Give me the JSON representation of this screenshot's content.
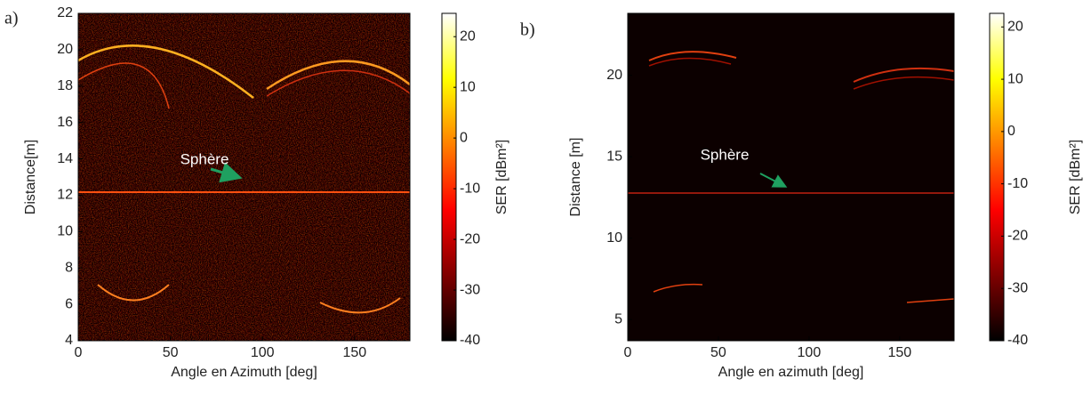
{
  "chart_data": [
    {
      "type": "heatmap",
      "panel_label": "a)",
      "colormap": "hot",
      "x_label": "Angle en Azimuth [deg]",
      "y_label": "Distance[m]",
      "xlim": [
        0,
        180
      ],
      "xticks": [
        0,
        50,
        100,
        150
      ],
      "ylim": [
        4,
        22
      ],
      "yticks": [
        4,
        6,
        8,
        10,
        12,
        14,
        16,
        18,
        20,
        22
      ],
      "colorbar": {
        "label": "SER [dBm²]",
        "lim": [
          -40,
          24.6
        ],
        "ticks": [
          -40,
          -30,
          -20,
          -10,
          0,
          10,
          20
        ]
      },
      "annotation": "Sphère"
    },
    {
      "type": "heatmap",
      "panel_label": "b)",
      "colormap": "hot",
      "x_label": "Angle en azimuth [deg]",
      "y_label": "Distance [m]",
      "xlim": [
        0,
        180
      ],
      "xticks": [
        0,
        50,
        100,
        150
      ],
      "ylim": [
        3.7,
        23.8
      ],
      "yticks": [
        5,
        10,
        15,
        20
      ],
      "colorbar": {
        "label": "SER [dBm²]",
        "lim": [
          -40,
          22.6
        ],
        "ticks": [
          -40,
          -30,
          -20,
          -10,
          0,
          10,
          20
        ]
      },
      "annotation": "Sphère"
    }
  ]
}
